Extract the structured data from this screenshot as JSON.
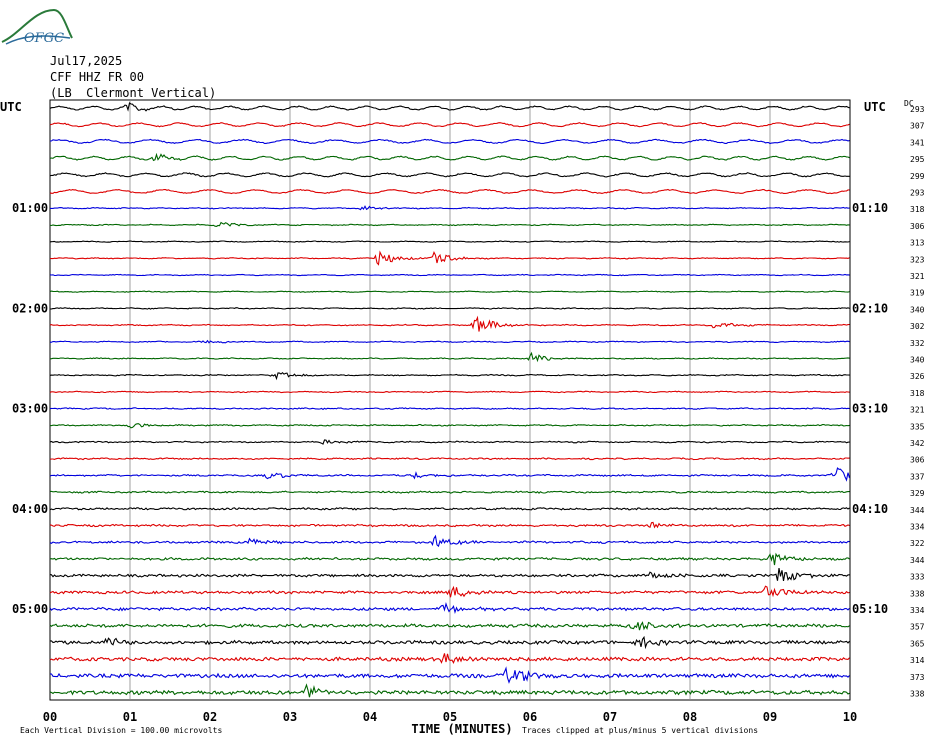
{
  "header": {
    "logo_text": "OFGC",
    "date": "Jul17,2025",
    "station": "CFF HHZ FR 00",
    "location": "(LB  Clermont Vertical)"
  },
  "chart_data": {
    "type": "line",
    "title": "CFF HHZ FR 00",
    "xlabel": "TIME (MINUTES)",
    "left_axis_label": "UTC",
    "right_axis_label": "UTC",
    "dc_label": "DC",
    "x_ticks": [
      "00",
      "01",
      "02",
      "03",
      "04",
      "05",
      "06",
      "07",
      "08",
      "09",
      "10"
    ],
    "xlim": [
      0,
      10
    ],
    "left_time_labels": [
      {
        "row": 6,
        "text": "01:00"
      },
      {
        "row": 12,
        "text": "02:00"
      },
      {
        "row": 18,
        "text": "03:00"
      },
      {
        "row": 24,
        "text": "04:00"
      },
      {
        "row": 30,
        "text": "05:00"
      }
    ],
    "right_time_labels": [
      {
        "row": 6,
        "text": "01:10"
      },
      {
        "row": 12,
        "text": "02:10"
      },
      {
        "row": 18,
        "text": "03:10"
      },
      {
        "row": 24,
        "text": "04:10"
      },
      {
        "row": 30,
        "text": "05:10"
      }
    ],
    "trace_colors": [
      "#000000",
      "#dd0000",
      "#0000dd",
      "#006600"
    ],
    "dc_values": [
      "293",
      "307",
      "341",
      "295",
      "299",
      "293",
      "318",
      "306",
      "313",
      "323",
      "321",
      "319",
      "340",
      "302",
      "332",
      "340",
      "326",
      "318",
      "321",
      "335",
      "342",
      "306",
      "337",
      "329",
      "344",
      "334",
      "322",
      "344",
      "333",
      "338",
      "334",
      "357",
      "365",
      "314",
      "373",
      "338"
    ],
    "noise_levels": [
      0.5,
      0.45,
      0.5,
      0.5,
      0.5,
      0.45,
      0.4,
      0.4,
      0.35,
      0.35,
      0.35,
      0.35,
      0.4,
      0.45,
      0.4,
      0.4,
      0.45,
      0.45,
      0.5,
      0.5,
      0.55,
      0.6,
      0.65,
      0.7,
      0.8,
      0.85,
      0.9,
      1.0,
      1.1,
      1.2,
      1.3,
      1.4,
      1.5,
      1.6,
      1.7,
      1.8
    ],
    "events": [
      {
        "row": 0,
        "minute": 0.95,
        "amp": 2.0
      },
      {
        "row": 3,
        "minute": 1.3,
        "amp": 1.5
      },
      {
        "row": 6,
        "minute": 3.9,
        "amp": 1.2
      },
      {
        "row": 7,
        "minute": 2.1,
        "amp": 1.3
      },
      {
        "row": 9,
        "minute": 4.1,
        "amp": 3.5
      },
      {
        "row": 9,
        "minute": 4.8,
        "amp": 3.0
      },
      {
        "row": 13,
        "minute": 5.3,
        "amp": 4.5
      },
      {
        "row": 13,
        "minute": 8.3,
        "amp": 1.5
      },
      {
        "row": 14,
        "minute": 1.9,
        "amp": 1.2
      },
      {
        "row": 15,
        "minute": 6.0,
        "amp": 2.5
      },
      {
        "row": 16,
        "minute": 2.8,
        "amp": 1.8
      },
      {
        "row": 19,
        "minute": 1.0,
        "amp": 1.3
      },
      {
        "row": 20,
        "minute": 3.4,
        "amp": 1.3
      },
      {
        "row": 22,
        "minute": 2.7,
        "amp": 2.0
      },
      {
        "row": 22,
        "minute": 4.5,
        "amp": 1.8
      },
      {
        "row": 22,
        "minute": 9.8,
        "amp": 4.0
      },
      {
        "row": 25,
        "minute": 7.5,
        "amp": 1.8
      },
      {
        "row": 26,
        "minute": 4.8,
        "amp": 3.0
      },
      {
        "row": 26,
        "minute": 2.5,
        "amp": 1.6
      },
      {
        "row": 27,
        "minute": 9.0,
        "amp": 3.5
      },
      {
        "row": 28,
        "minute": 9.1,
        "amp": 4.5
      },
      {
        "row": 28,
        "minute": 7.5,
        "amp": 2.0
      },
      {
        "row": 29,
        "minute": 5.0,
        "amp": 3.0
      },
      {
        "row": 29,
        "minute": 8.95,
        "amp": 3.5
      },
      {
        "row": 30,
        "minute": 4.9,
        "amp": 2.5
      },
      {
        "row": 31,
        "minute": 7.3,
        "amp": 3.0
      },
      {
        "row": 32,
        "minute": 0.7,
        "amp": 2.5
      },
      {
        "row": 32,
        "minute": 7.35,
        "amp": 3.0
      },
      {
        "row": 33,
        "minute": 4.9,
        "amp": 2.5
      },
      {
        "row": 34,
        "minute": 5.7,
        "amp": 5.0
      },
      {
        "row": 35,
        "minute": 3.15,
        "amp": 4.5
      }
    ],
    "footer_left": "Each Vertical Division =  100.00 microvolts",
    "footer_right": "Traces clipped at plus/minus 5 vertical divisions"
  }
}
